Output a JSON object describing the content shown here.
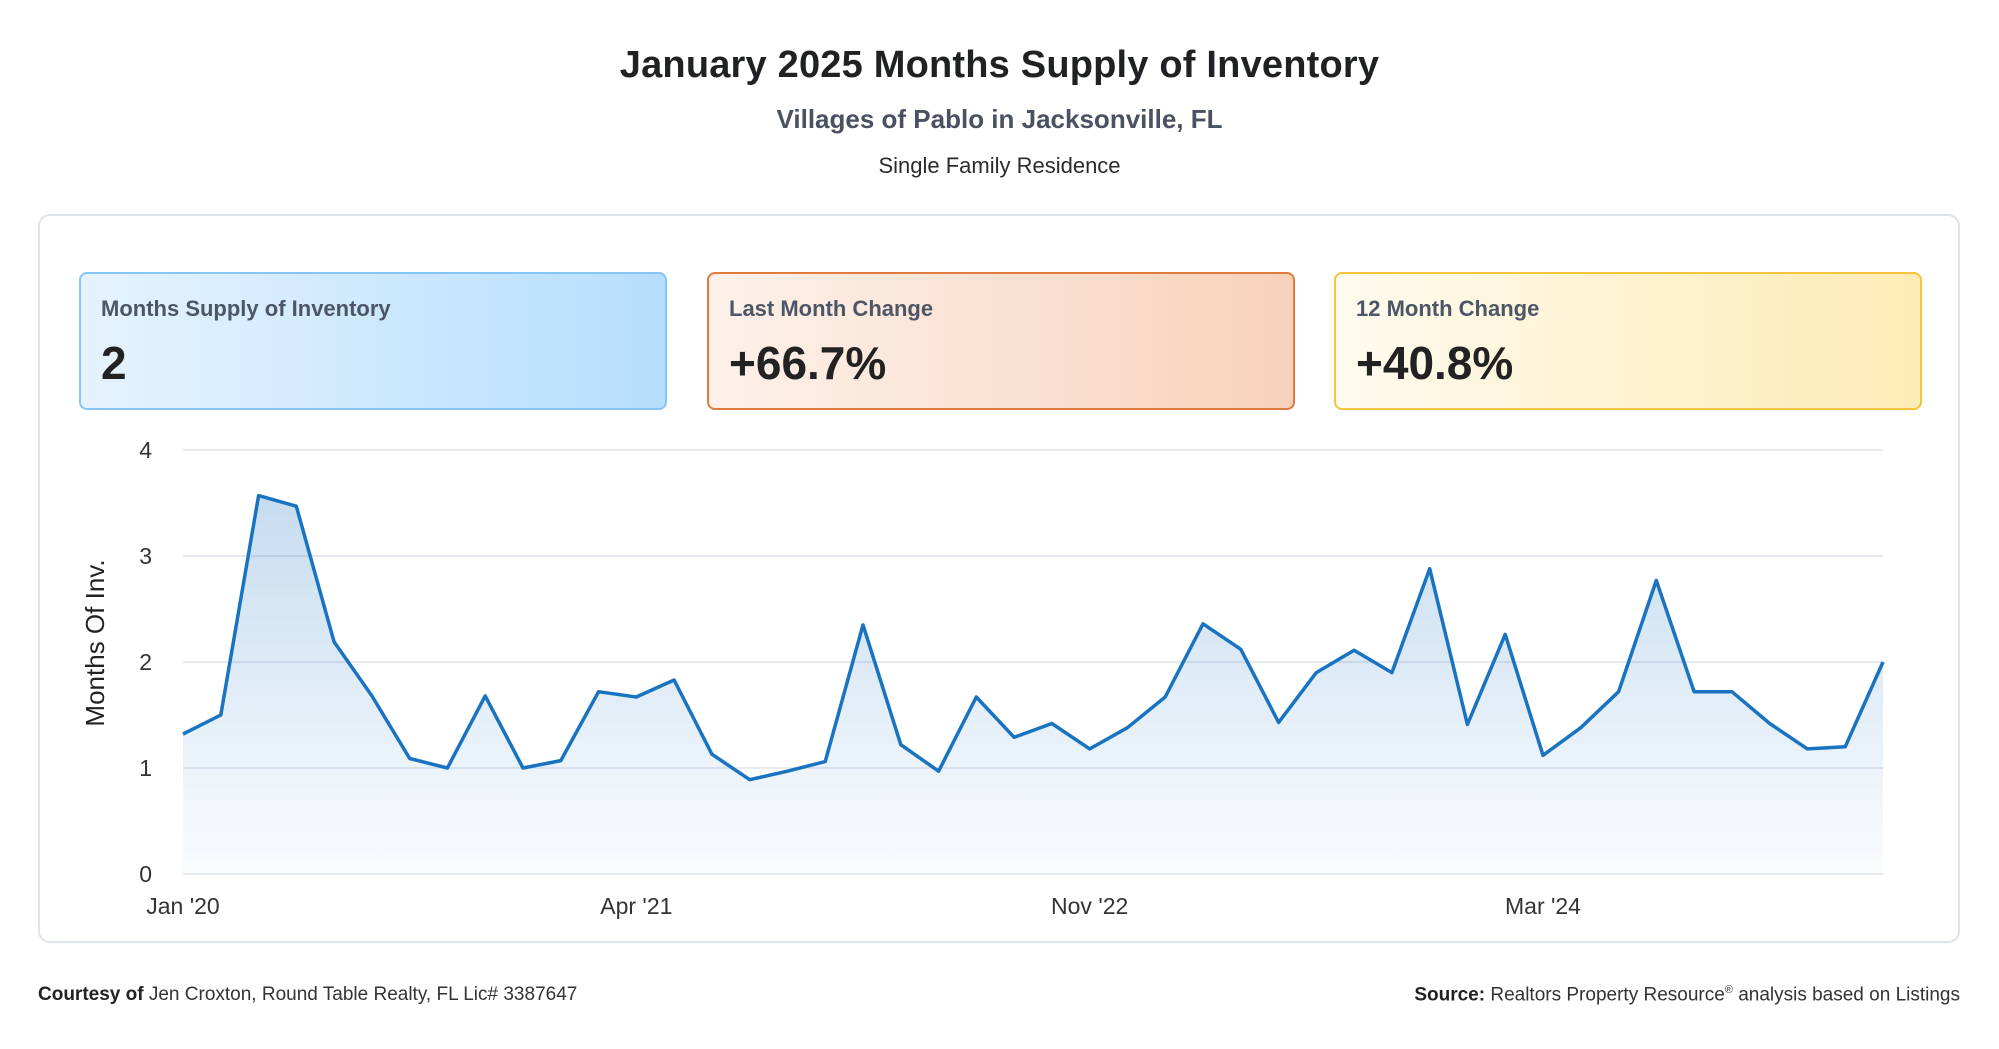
{
  "title": "January 2025 Months Supply of Inventory",
  "subtitle": "Villages of Pablo in Jacksonville, FL",
  "subsubtitle": "Single Family Residence",
  "cards": [
    {
      "label": "Months Supply of Inventory",
      "value": "2"
    },
    {
      "label": "Last Month Change",
      "value": "+66.7%"
    },
    {
      "label": "12 Month Change",
      "value": "+40.8%"
    }
  ],
  "colors": {
    "line": "#1a73c1",
    "grid": "#dfe3ea",
    "card1_border": "#86c6f4",
    "card2_border": "#e07b3c",
    "card3_border": "#f2c53a"
  },
  "chart_data": {
    "type": "area",
    "ylabel": "Months Of Inv.",
    "ylim": [
      0,
      4
    ],
    "yticks": [
      "0",
      "1",
      "2",
      "3",
      "4"
    ],
    "xtick_labels": [
      {
        "label": "Jan '20",
        "index": 0
      },
      {
        "label": "Apr '21",
        "index": 12
      },
      {
        "label": "Nov '22",
        "index": 24
      },
      {
        "label": "Mar '24",
        "index": 36
      }
    ],
    "grid": true,
    "series": [
      {
        "values": [
          1.32,
          1.5,
          3.57,
          3.47,
          2.19,
          1.68,
          1.09,
          1.0,
          1.68,
          1.0,
          1.07,
          1.72,
          1.67,
          1.83,
          1.13,
          0.89,
          0.97,
          1.06,
          2.35,
          1.22,
          0.97,
          1.67,
          1.29,
          1.42,
          1.18,
          1.38,
          1.67,
          2.36,
          2.12,
          1.43,
          1.9,
          2.11,
          1.9,
          2.88,
          1.41,
          2.26,
          1.12,
          1.38,
          1.72,
          2.77,
          1.72,
          1.72,
          1.42,
          1.18,
          1.2,
          2.0
        ]
      }
    ]
  },
  "footer": {
    "courtesy_label": "Courtesy of",
    "courtesy_text": "Jen Croxton, Round Table Realty, FL Lic# 3387647",
    "source_label": "Source:",
    "source_text_1": "Realtors Property Resource",
    "source_sup": "®",
    "source_text_2": "analysis based on Listings"
  }
}
